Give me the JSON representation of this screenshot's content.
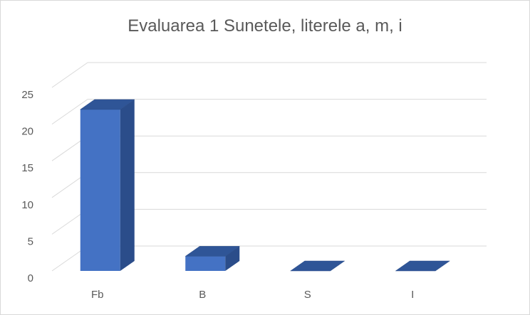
{
  "chart_data": {
    "type": "bar",
    "title": "Evaluarea 1 Sunetele, literele a, m, i",
    "categories": [
      "Fb",
      "B",
      "S",
      "I"
    ],
    "values": [
      22,
      2,
      0,
      0
    ],
    "ylim": [
      0,
      25
    ],
    "yticks": [
      0,
      5,
      10,
      15,
      20,
      25
    ],
    "grid": true,
    "legend": "none",
    "colors": {
      "bar_front": "#4472c4",
      "bar_top": "#2f5597",
      "bar_side": "#2b4d8a",
      "grid": "#d9d9d9",
      "text": "#595959"
    }
  }
}
